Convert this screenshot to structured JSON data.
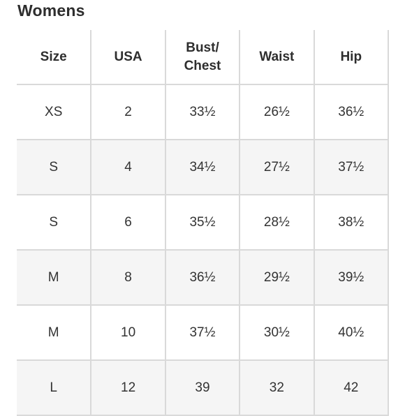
{
  "title": "Womens",
  "table": {
    "headers": [
      "Size",
      "USA",
      "Bust/\nChest",
      "Waist",
      "Hip"
    ],
    "rows": [
      [
        "XS",
        "2",
        "33½",
        "26½",
        "36½"
      ],
      [
        "S",
        "4",
        "34½",
        "27½",
        "37½"
      ],
      [
        "S",
        "6",
        "35½",
        "28½",
        "38½"
      ],
      [
        "M",
        "8",
        "36½",
        "29½",
        "39½"
      ],
      [
        "M",
        "10",
        "37½",
        "30½",
        "40½"
      ],
      [
        "L",
        "12",
        "39",
        "32",
        "42"
      ]
    ]
  },
  "colors": {
    "border": "#d9d9d9",
    "alt_row": "#f5f5f5",
    "text": "#2e2e2e"
  }
}
